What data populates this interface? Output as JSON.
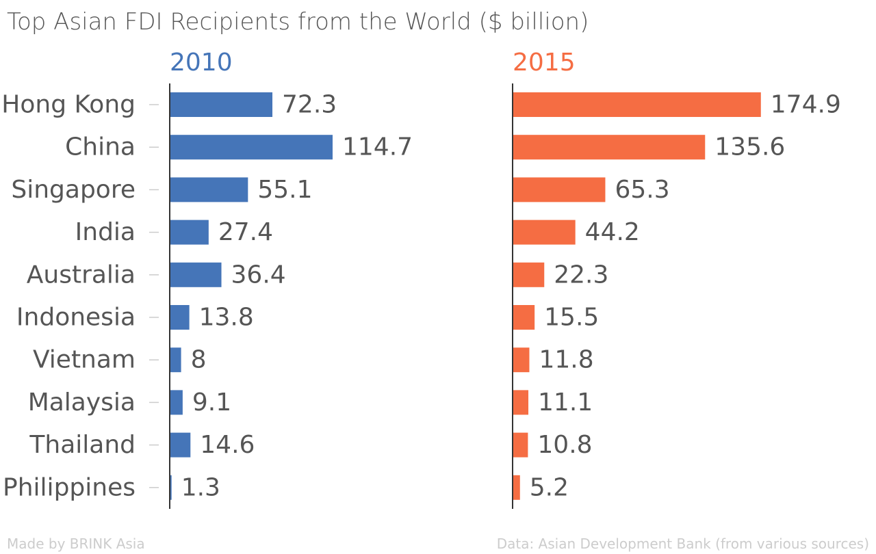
{
  "title": "Top Asian FDI Recipients from the World ($ billion)",
  "footer": {
    "credit": "Made by BRINK Asia",
    "source": "Data: Asian Development Bank (from various sources)"
  },
  "chart_data": {
    "type": "bar",
    "orientation": "horizontal",
    "categories": [
      "Hong Kong",
      "China",
      "Singapore",
      "India",
      "Australia",
      "Indonesia",
      "Vietnam",
      "Malaysia",
      "Thailand",
      "Philippines"
    ],
    "series": [
      {
        "name": "2010",
        "color": "#4575b8",
        "values": [
          72.3,
          114.7,
          55.1,
          27.4,
          36.4,
          13.8,
          8,
          9.1,
          14.6,
          1.3
        ]
      },
      {
        "name": "2015",
        "color": "#f56d43",
        "values": [
          174.9,
          135.6,
          65.3,
          44.2,
          22.3,
          15.5,
          11.8,
          11.1,
          10.8,
          5.2
        ]
      }
    ],
    "xlim": [
      0,
      175
    ],
    "grid": false,
    "legend": "none"
  }
}
